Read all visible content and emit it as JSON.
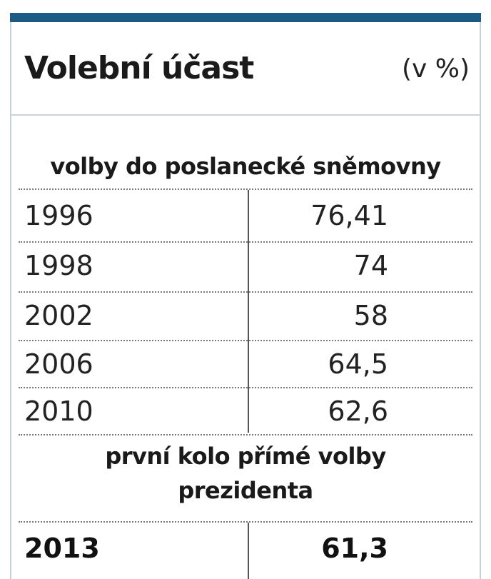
{
  "colors": {
    "accent": "#1d5b86",
    "border": "#c8d4dc"
  },
  "chart_data": {
    "type": "table",
    "title": "Volební účast",
    "unit": "(v %)",
    "sections": [
      {
        "heading": "volby do poslanecké sněmovny",
        "rows": [
          {
            "year": "1996",
            "value": "76,41"
          },
          {
            "year": "1998",
            "value": "74"
          },
          {
            "year": "2002",
            "value": "58"
          },
          {
            "year": "2006",
            "value": "64,5"
          },
          {
            "year": "2010",
            "value": "62,6"
          }
        ]
      },
      {
        "heading_line1": "první kolo přímé volby",
        "heading_line2": "prezidenta",
        "rows": [
          {
            "year": "2013",
            "value": "61,3"
          }
        ]
      }
    ]
  }
}
